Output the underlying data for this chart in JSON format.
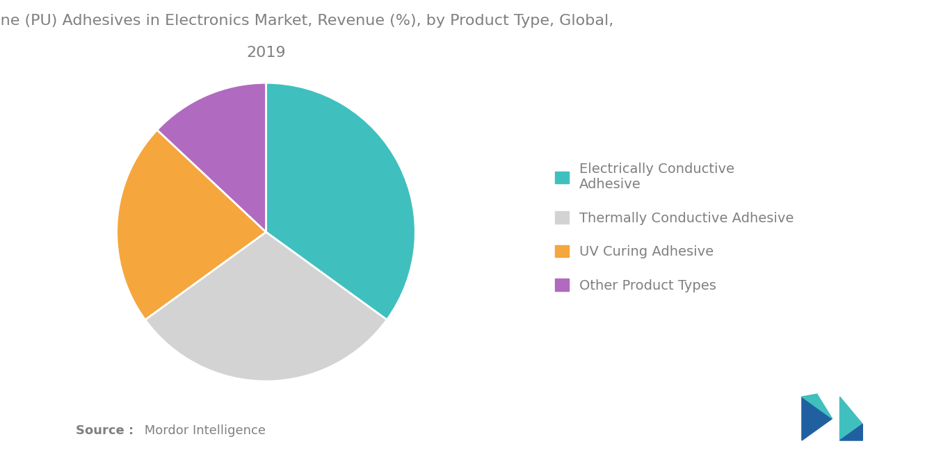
{
  "title_line1": "Polyurethane (PU) Adhesives in Electronics Market, Revenue (%), by Product Type, Global,",
  "title_line2": "2019",
  "slices": [
    {
      "label": "Electrically Conductive\nAdhesive",
      "value": 35,
      "color": "#40bfbf"
    },
    {
      "label": "Thermally Conductive Adhesive",
      "value": 30,
      "color": "#d3d3d3"
    },
    {
      "label": "UV Curing Adhesive",
      "value": 22,
      "color": "#f5a63d"
    },
    {
      "label": "Other Product Types",
      "value": 13,
      "color": "#b06abf"
    }
  ],
  "legend_labels": [
    "Electrically Conductive\nAdhesive",
    "Thermally Conductive Adhesive",
    "UV Curing Adhesive",
    "Other Product Types"
  ],
  "legend_colors": [
    "#40bfbf",
    "#d3d3d3",
    "#f5a63d",
    "#b06abf"
  ],
  "source_bold": "Source :",
  "source_normal": " Mordor Intelligence",
  "background_color": "#ffffff",
  "title_fontsize": 16,
  "text_color": "#808080",
  "start_angle": 90
}
